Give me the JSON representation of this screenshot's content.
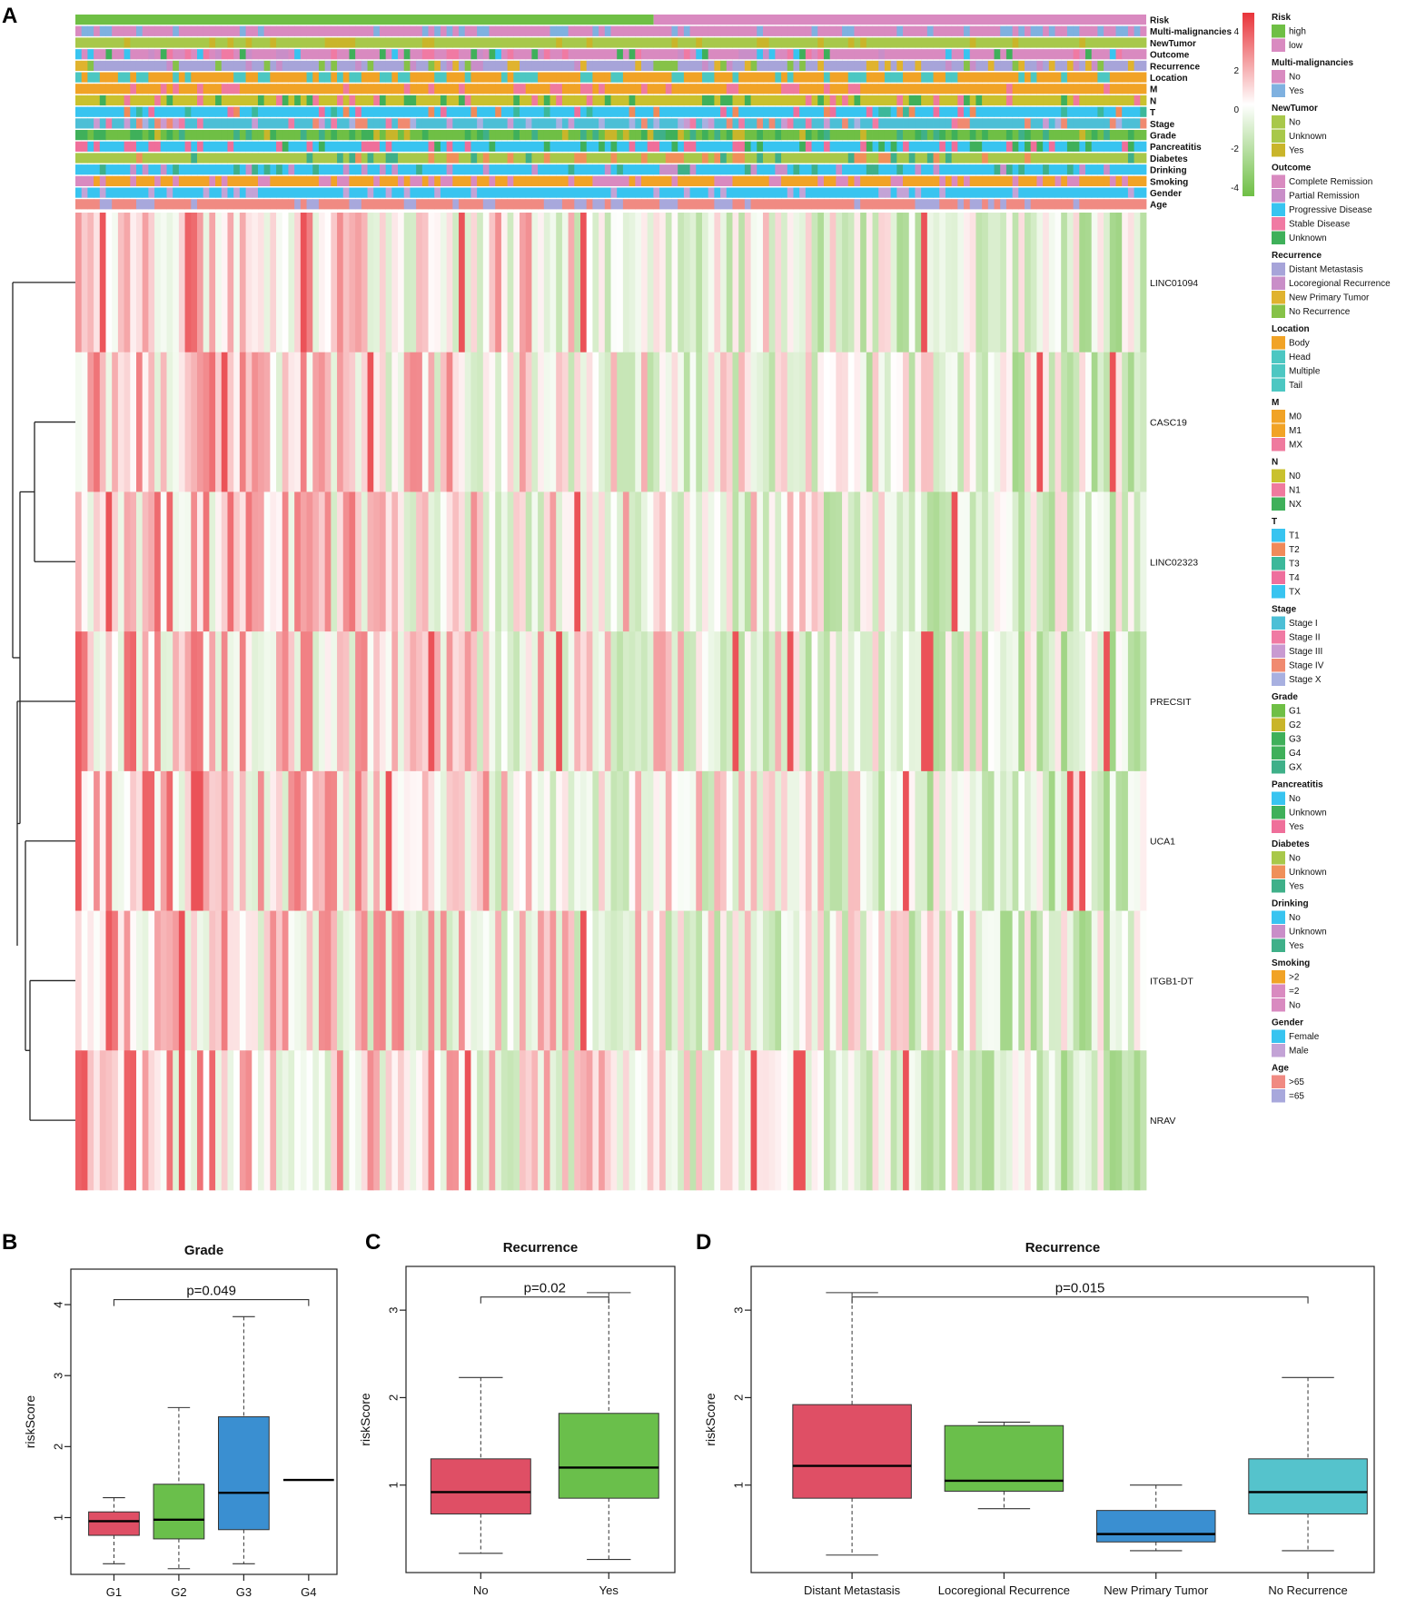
{
  "panel_letters": [
    "A",
    "B",
    "C",
    "D"
  ],
  "heatmap": {
    "annotation_tracks": [
      "Risk",
      "Multi-malignancies",
      "NewTumor",
      "Outcome",
      "Recurrence",
      "Location",
      "M",
      "N",
      "T",
      "Stage",
      "Grade",
      "Pancreatitis",
      "Diabetes",
      "Drinking",
      "Smoking",
      "Gender",
      "Age"
    ],
    "genes": [
      "LINC01094",
      "CASC19",
      "LINC02323",
      "PRECSIT",
      "UCA1",
      "ITGB1-DT",
      "NRAV"
    ],
    "color_scale": {
      "labels": [
        "4",
        "2",
        "0",
        "-2",
        "-4"
      ],
      "high": "#e8343a",
      "mid": "#ffffff",
      "low": "#6fbf45"
    },
    "legend": [
      {
        "title": "Risk",
        "items": [
          {
            "label": "high",
            "color": "#6fbf45"
          },
          {
            "label": "low",
            "color": "#d98ac0"
          }
        ]
      },
      {
        "title": "Multi-malignancies",
        "items": [
          {
            "label": "No",
            "color": "#d98ac0"
          },
          {
            "label": "Yes",
            "color": "#7fb1e0"
          }
        ]
      },
      {
        "title": "NewTumor",
        "items": [
          {
            "label": "No",
            "color": "#a8c84a"
          },
          {
            "label": "Unknown",
            "color": "#a8c84a"
          },
          {
            "label": "Yes",
            "color": "#c9b52a"
          }
        ]
      },
      {
        "title": "Outcome",
        "items": [
          {
            "label": "Complete Remission",
            "color": "#d98ac0"
          },
          {
            "label": "Partial Remission",
            "color": "#c98ec8"
          },
          {
            "label": "Progressive Disease",
            "color": "#38c4f0"
          },
          {
            "label": "Stable Disease",
            "color": "#f07aa3"
          },
          {
            "label": "Unknown",
            "color": "#3fb05a"
          }
        ]
      },
      {
        "title": "Recurrence",
        "items": [
          {
            "label": "Distant Metastasis",
            "color": "#a7a4d9"
          },
          {
            "label": "Locoregional Recurrence",
            "color": "#c98ec8"
          },
          {
            "label": "New Primary Tumor",
            "color": "#e0b32e"
          },
          {
            "label": "No Recurrence",
            "color": "#86c248"
          }
        ]
      },
      {
        "title": "Location",
        "items": [
          {
            "label": "Body",
            "color": "#f1a326"
          },
          {
            "label": "Head",
            "color": "#4cc7c2"
          },
          {
            "label": "Multiple",
            "color": "#4cc7c2"
          },
          {
            "label": "Tail",
            "color": "#4cc7c2"
          }
        ]
      },
      {
        "title": "M",
        "items": [
          {
            "label": "M0",
            "color": "#f1a326"
          },
          {
            "label": "M1",
            "color": "#f1a326"
          },
          {
            "label": "MX",
            "color": "#ef7a9e"
          }
        ]
      },
      {
        "title": "N",
        "items": [
          {
            "label": "N0",
            "color": "#c9c12e"
          },
          {
            "label": "N1",
            "color": "#ef7a9e"
          },
          {
            "label": "NX",
            "color": "#3fb05a"
          }
        ]
      },
      {
        "title": "T",
        "items": [
          {
            "label": "T1",
            "color": "#38c4f0"
          },
          {
            "label": "T2",
            "color": "#f08a5a"
          },
          {
            "label": "T3",
            "color": "#3cb89a"
          },
          {
            "label": "T4",
            "color": "#ee6f9d"
          },
          {
            "label": "TX",
            "color": "#38c4f0"
          }
        ]
      },
      {
        "title": "Stage",
        "items": [
          {
            "label": "Stage I",
            "color": "#4cbfd6"
          },
          {
            "label": "Stage II",
            "color": "#f07aa3"
          },
          {
            "label": "Stage III",
            "color": "#c99ad1"
          },
          {
            "label": "Stage IV",
            "color": "#f08a70"
          },
          {
            "label": "Stage X",
            "color": "#a8b0e0"
          }
        ]
      },
      {
        "title": "Grade",
        "items": [
          {
            "label": "G1",
            "color": "#6fbf45"
          },
          {
            "label": "G2",
            "color": "#c9b52a"
          },
          {
            "label": "G3",
            "color": "#3fb05a"
          },
          {
            "label": "G4",
            "color": "#3fb05a"
          },
          {
            "label": "GX",
            "color": "#3fb089"
          }
        ]
      },
      {
        "title": "Pancreatitis",
        "items": [
          {
            "label": "No",
            "color": "#38c4f0"
          },
          {
            "label": "Unknown",
            "color": "#3fb05a"
          },
          {
            "label": "Yes",
            "color": "#ef6f9a"
          }
        ]
      },
      {
        "title": "Diabetes",
        "items": [
          {
            "label": "No",
            "color": "#a8c84a"
          },
          {
            "label": "Unknown",
            "color": "#f0905a"
          },
          {
            "label": "Yes",
            "color": "#3fb089"
          }
        ]
      },
      {
        "title": "Drinking",
        "items": [
          {
            "label": "No",
            "color": "#38c4f0"
          },
          {
            "label": "Unknown",
            "color": "#c98ec8"
          },
          {
            "label": "Yes",
            "color": "#3fb089"
          }
        ]
      },
      {
        "title": "Smoking",
        "items": [
          {
            "label": ">2",
            "color": "#f1a326"
          },
          {
            "label": "=2",
            "color": "#d98ac0"
          },
          {
            "label": "No",
            "color": "#d98ac0"
          }
        ]
      },
      {
        "title": "Gender",
        "items": [
          {
            "label": "Female",
            "color": "#38c4f0"
          },
          {
            "label": "Male",
            "color": "#c3a3d6"
          }
        ]
      },
      {
        "title": "Age",
        "items": [
          {
            "label": ">65",
            "color": "#f08a82"
          },
          {
            "label": "=65",
            "color": "#a8a8dc"
          }
        ]
      }
    ]
  },
  "chart_data": [
    {
      "type": "box",
      "panel": "B",
      "title": "Grade",
      "ylabel": "riskScore",
      "xlabel": "",
      "ylim": [
        0.2,
        4.5
      ],
      "yticks": [
        "1",
        "2",
        "3",
        "4"
      ],
      "pvalue": "p=0.049",
      "bracket": [
        "G1",
        "G4"
      ],
      "categories": [
        "G1",
        "G2",
        "G3",
        "G4"
      ],
      "colors": [
        "#df4f65",
        "#6abf4b",
        "#3a8fd1",
        "#111111"
      ],
      "boxes": [
        {
          "min": 0.35,
          "q1": 0.75,
          "median": 0.95,
          "q3": 1.08,
          "max": 1.28
        },
        {
          "min": 0.28,
          "q1": 0.7,
          "median": 0.97,
          "q3": 1.47,
          "max": 2.55
        },
        {
          "min": 0.35,
          "q1": 0.83,
          "median": 1.35,
          "q3": 2.42,
          "max": 3.83
        },
        {
          "min": 1.53,
          "q1": 1.53,
          "median": 1.53,
          "q3": 1.53,
          "max": 1.53
        }
      ]
    },
    {
      "type": "box",
      "panel": "C",
      "title": "Recurrence",
      "ylabel": "riskScore",
      "xlabel": "",
      "ylim": [
        0.0,
        3.5
      ],
      "yticks": [
        "1",
        "2",
        "3"
      ],
      "pvalue": "p=0.02",
      "bracket": [
        "No",
        "Yes"
      ],
      "categories": [
        "No",
        "Yes"
      ],
      "colors": [
        "#df4f65",
        "#6abf4b"
      ],
      "boxes": [
        {
          "min": 0.22,
          "q1": 0.67,
          "median": 0.92,
          "q3": 1.3,
          "max": 2.23
        },
        {
          "min": 0.15,
          "q1": 0.85,
          "median": 1.2,
          "q3": 1.82,
          "max": 3.2
        }
      ]
    },
    {
      "type": "box",
      "panel": "D",
      "title": "Recurrence",
      "ylabel": "riskScore",
      "xlabel": "",
      "ylim": [
        0.0,
        3.5
      ],
      "yticks": [
        "1",
        "2",
        "3"
      ],
      "pvalue": "p=0.015",
      "bracket": [
        "Distant Metastasis",
        "No Recurrence"
      ],
      "categories": [
        "Distant Metastasis",
        "Locoregional Recurrence",
        "New Primary Tumor",
        "No Recurrence"
      ],
      "colors": [
        "#df4f65",
        "#6abf4b",
        "#3a8fd1",
        "#55c3cc"
      ],
      "boxes": [
        {
          "min": 0.2,
          "q1": 0.85,
          "median": 1.22,
          "q3": 1.92,
          "max": 3.2
        },
        {
          "min": 0.73,
          "q1": 0.93,
          "median": 1.05,
          "q3": 1.68,
          "max": 1.72
        },
        {
          "min": 0.25,
          "q1": 0.35,
          "median": 0.44,
          "q3": 0.71,
          "max": 1.0
        },
        {
          "min": 0.25,
          "q1": 0.67,
          "median": 0.92,
          "q3": 1.3,
          "max": 2.23
        }
      ]
    }
  ]
}
